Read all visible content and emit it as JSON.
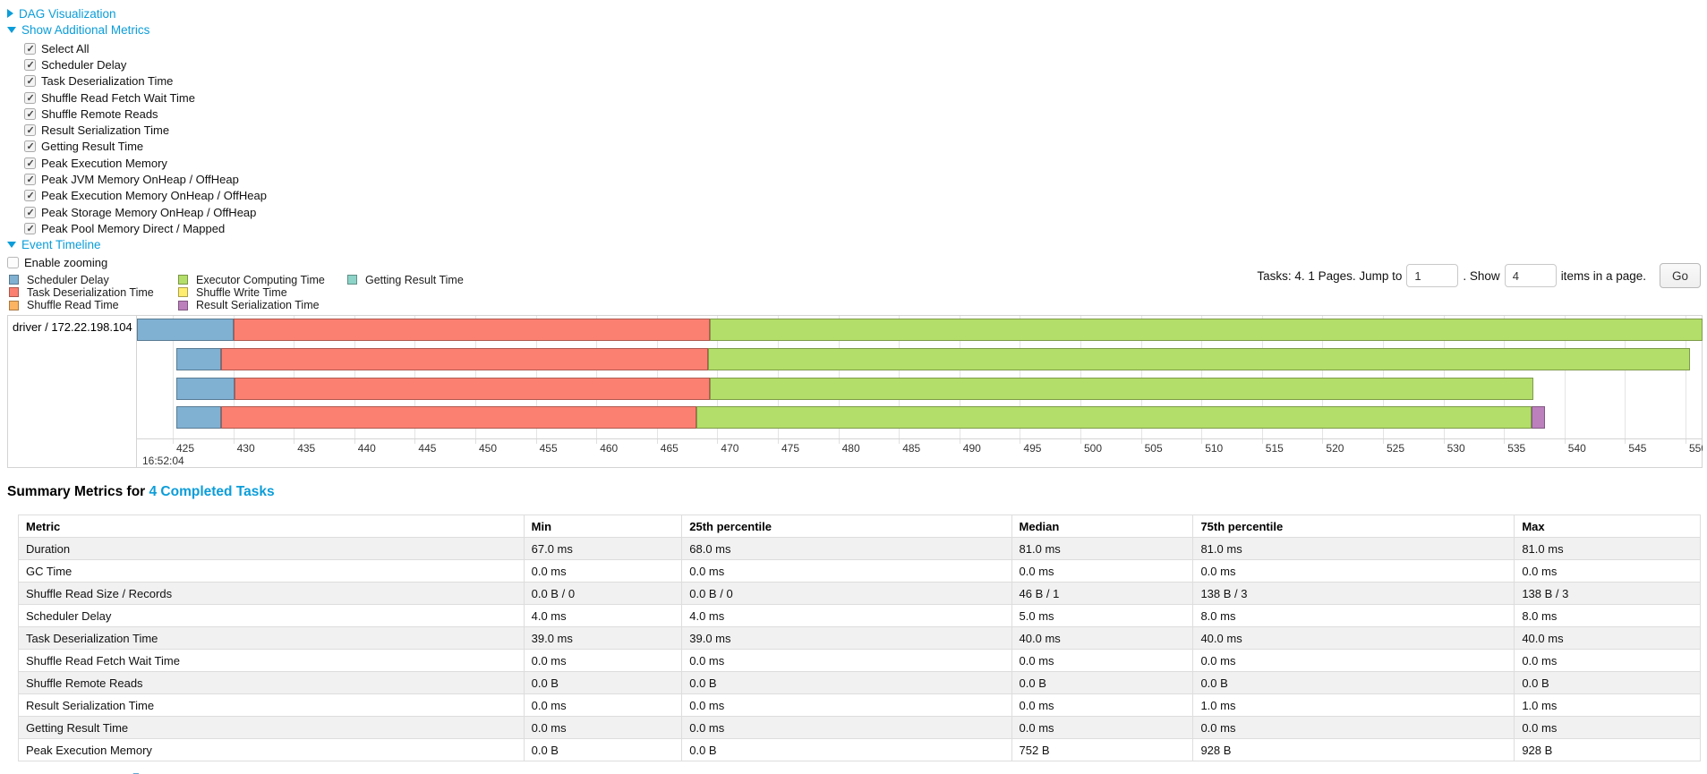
{
  "sections": {
    "dag": {
      "label": "DAG Visualization",
      "state": "collapsed"
    },
    "additional_metrics": {
      "label": "Show Additional Metrics",
      "state": "expanded"
    },
    "event_timeline": {
      "label": "Event Timeline",
      "state": "expanded"
    },
    "enable_zooming": {
      "label": "Enable zooming",
      "checked": false
    }
  },
  "metric_checkboxes": [
    "Select All",
    "Scheduler Delay",
    "Task Deserialization Time",
    "Shuffle Read Fetch Wait Time",
    "Shuffle Remote Reads",
    "Result Serialization Time",
    "Getting Result Time",
    "Peak Execution Memory",
    "Peak JVM Memory OnHeap / OffHeap",
    "Peak Execution Memory OnHeap / OffHeap",
    "Peak Storage Memory OnHeap / OffHeap",
    "Peak Pool Memory Direct / Mapped"
  ],
  "legend": {
    "columns": [
      [
        {
          "label": "Scheduler Delay",
          "color": "#80B1D3"
        },
        {
          "label": "Task Deserialization Time",
          "color": "#FB8072"
        },
        {
          "label": "Shuffle Read Time",
          "color": "#FDB462"
        }
      ],
      [
        {
          "label": "Executor Computing Time",
          "color": "#B3DE69"
        },
        {
          "label": "Shuffle Write Time",
          "color": "#FFED6F"
        },
        {
          "label": "Result Serialization Time",
          "color": "#BC80BD"
        }
      ],
      [
        {
          "label": "Getting Result Time",
          "color": "#8DD3C7"
        }
      ]
    ]
  },
  "pagination": {
    "prefix": "Tasks: 4. 1 Pages. Jump to",
    "jump_value": "1",
    "show_label": ". Show",
    "show_value": "4",
    "suffix": "items in a page.",
    "go_label": "Go"
  },
  "chart_data": {
    "type": "timeline",
    "group_label": "driver / 172.22.198.104",
    "time_axis": {
      "unit": "ms",
      "tick_start": 425,
      "tick_end": 550,
      "tick_step": 5,
      "major_label": "16:52:04",
      "domain_start": 422,
      "domain_end": 551.5
    },
    "series_colors": {
      "scheduler_delay": "#80B1D3",
      "task_deserialization": "#FB8072",
      "shuffle_read": "#FDB462",
      "executor_computing": "#B3DE69",
      "shuffle_write": "#FFED6F",
      "result_serialization": "#BC80BD",
      "getting_result": "#8DD3C7"
    },
    "tasks": [
      {
        "segments": [
          {
            "type": "scheduler_delay",
            "start": 422.0,
            "end": 430.0
          },
          {
            "type": "task_deserialization",
            "start": 430.0,
            "end": 469.4
          },
          {
            "type": "executor_computing",
            "start": 469.4,
            "end": 551.5
          }
        ]
      },
      {
        "segments": [
          {
            "type": "scheduler_delay",
            "start": 425.3,
            "end": 429.0
          },
          {
            "type": "task_deserialization",
            "start": 429.0,
            "end": 469.2
          },
          {
            "type": "executor_computing",
            "start": 469.2,
            "end": 550.4
          }
        ]
      },
      {
        "segments": [
          {
            "type": "scheduler_delay",
            "start": 425.3,
            "end": 430.1
          },
          {
            "type": "task_deserialization",
            "start": 430.1,
            "end": 469.4
          },
          {
            "type": "executor_computing",
            "start": 469.4,
            "end": 537.4
          }
        ]
      },
      {
        "segments": [
          {
            "type": "scheduler_delay",
            "start": 425.3,
            "end": 429.0
          },
          {
            "type": "task_deserialization",
            "start": 429.0,
            "end": 468.3
          },
          {
            "type": "executor_computing",
            "start": 468.3,
            "end": 537.3
          },
          {
            "type": "result_serialization",
            "start": 537.3,
            "end": 538.4
          }
        ]
      }
    ]
  },
  "summary": {
    "title_prefix": "Summary Metrics for ",
    "title_link": "4 Completed Tasks",
    "table": {
      "headers": [
        "Metric",
        "Min",
        "25th percentile",
        "Median",
        "75th percentile",
        "Max"
      ],
      "rows": [
        [
          "Duration",
          "67.0 ms",
          "68.0 ms",
          "81.0 ms",
          "81.0 ms",
          "81.0 ms"
        ],
        [
          "GC Time",
          "0.0 ms",
          "0.0 ms",
          "0.0 ms",
          "0.0 ms",
          "0.0 ms"
        ],
        [
          "Shuffle Read Size / Records",
          "0.0 B / 0",
          "0.0 B / 0",
          "46 B / 1",
          "138 B / 3",
          "138 B / 3"
        ],
        [
          "Scheduler Delay",
          "4.0 ms",
          "4.0 ms",
          "5.0 ms",
          "8.0 ms",
          "8.0 ms"
        ],
        [
          "Task Deserialization Time",
          "39.0 ms",
          "39.0 ms",
          "40.0 ms",
          "40.0 ms",
          "40.0 ms"
        ],
        [
          "Shuffle Read Fetch Wait Time",
          "0.0 ms",
          "0.0 ms",
          "0.0 ms",
          "0.0 ms",
          "0.0 ms"
        ],
        [
          "Shuffle Remote Reads",
          "0.0 B",
          "0.0 B",
          "0.0 B",
          "0.0 B",
          "0.0 B"
        ],
        [
          "Result Serialization Time",
          "0.0 ms",
          "0.0 ms",
          "0.0 ms",
          "1.0 ms",
          "1.0 ms"
        ],
        [
          "Getting Result Time",
          "0.0 ms",
          "0.0 ms",
          "0.0 ms",
          "0.0 ms",
          "0.0 ms"
        ],
        [
          "Peak Execution Memory",
          "0.0 B",
          "0.0 B",
          "752 B",
          "928 B",
          "928 B"
        ]
      ]
    }
  },
  "colors": {
    "link_blue": "#0b9dd9"
  }
}
